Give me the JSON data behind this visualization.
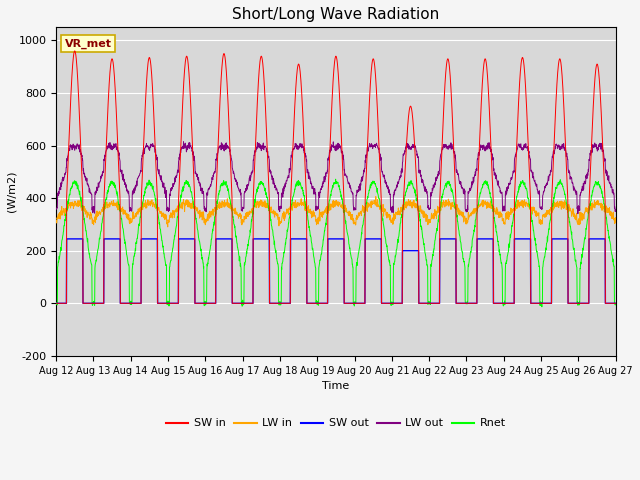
{
  "title": "Short/Long Wave Radiation",
  "xlabel": "Time",
  "ylabel": "(W/m2)",
  "ylim": [
    -200,
    1050
  ],
  "annotation": "VR_met",
  "plot_bg_color": "#d8d8d8",
  "fig_bg_color": "#f5f5f5",
  "legend_labels": [
    "SW in",
    "LW in",
    "SW out",
    "LW out",
    "Rnet"
  ],
  "xtick_labels": [
    "Aug 12",
    "Aug 13",
    "Aug 14",
    "Aug 15",
    "Aug 16",
    "Aug 17",
    "Aug 18",
    "Aug 19",
    "Aug 20",
    "Aug 21",
    "Aug 22",
    "Aug 23",
    "Aug 24",
    "Aug 25",
    "Aug 26",
    "Aug 27"
  ],
  "num_days": 15,
  "ppd": 144,
  "sw_in_peaks": [
    960,
    930,
    935,
    940,
    950,
    940,
    910,
    940,
    930,
    750,
    930,
    930,
    935,
    930,
    910
  ],
  "sw_out_peaks": [
    245,
    245,
    245,
    245,
    245,
    245,
    245,
    245,
    245,
    200,
    245,
    245,
    245,
    245,
    245
  ],
  "lw_in_night": 310,
  "lw_in_day_add": 70,
  "lw_out_night": 360,
  "lw_out_day_peak": 600,
  "rnet_day_peak": 460,
  "rnet_night_val": -80
}
